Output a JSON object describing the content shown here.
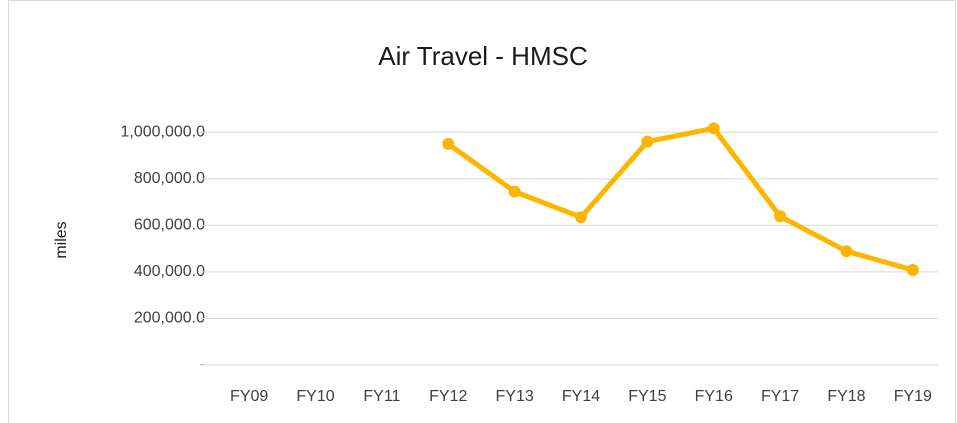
{
  "chart_data": {
    "type": "line",
    "title": "Air Travel - HMSC",
    "y_label": "miles",
    "categories": [
      "FY09",
      "FY10",
      "FY11",
      "FY12",
      "FY13",
      "FY14",
      "FY15",
      "FY16",
      "FY17",
      "FY18",
      "FY19"
    ],
    "values": [
      null,
      null,
      null,
      950000,
      745000,
      635000,
      960000,
      1017000,
      639000,
      489000,
      408000
    ],
    "color": "#ffb400",
    "ylim": [
      0,
      1100000
    ],
    "yticks": [
      {
        "value": 0,
        "label": "-"
      },
      {
        "value": 200000,
        "label": "200,000.0"
      },
      {
        "value": 400000,
        "label": "400,000.0"
      },
      {
        "value": 600000,
        "label": "600,000.0"
      },
      {
        "value": 800000,
        "label": "800,000.0"
      },
      {
        "value": 1000000,
        "label": "1,000,000.0"
      }
    ],
    "grid": true
  }
}
